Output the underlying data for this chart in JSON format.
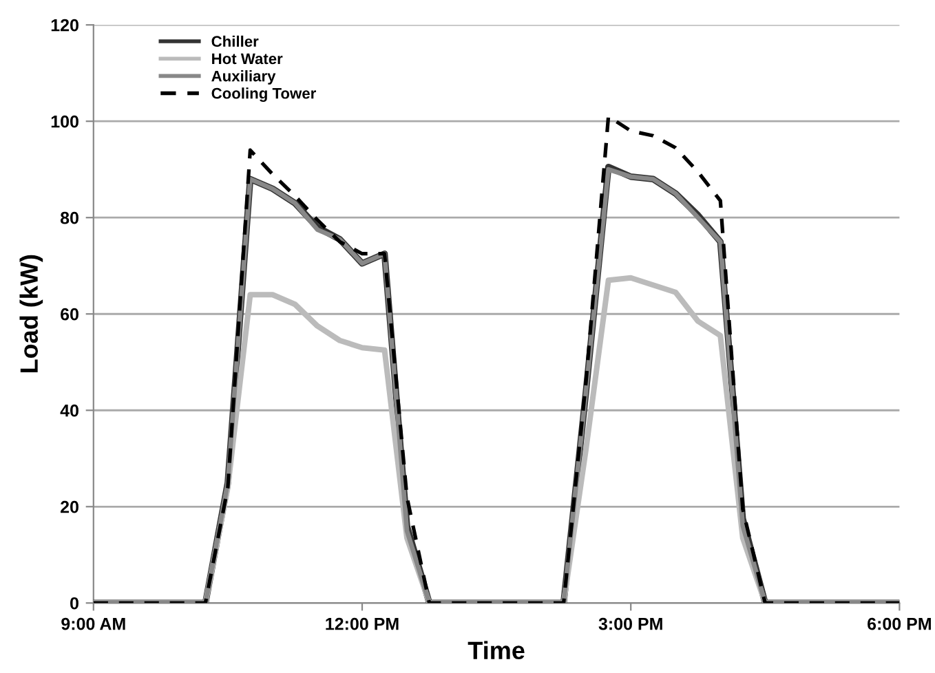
{
  "chart_data": {
    "type": "line",
    "xlabel": "Time",
    "ylabel": "Load (kW)",
    "x": [
      9,
      10.25,
      10.5,
      10.75,
      11.0,
      11.25,
      11.5,
      11.75,
      12.0,
      12.25,
      12.5,
      12.75,
      14.25,
      14.5,
      14.75,
      15.0,
      15.25,
      15.5,
      15.75,
      16.0,
      16.25,
      16.5,
      18
    ],
    "series": [
      {
        "name": "Chiller",
        "color": "#333333",
        "line_style": "solid",
        "values": [
          0,
          0,
          25,
          88,
          86,
          83,
          78,
          75.5,
          70.5,
          72.5,
          16,
          0,
          0,
          44,
          90.5,
          88.5,
          88,
          85,
          80.5,
          75,
          17.5,
          0,
          0
        ]
      },
      {
        "name": "Hot Water",
        "color": "#bbbbbb",
        "line_style": "solid",
        "values": [
          0,
          0,
          24,
          64,
          64,
          62,
          57.5,
          54.5,
          53,
          52.5,
          13.5,
          0,
          0,
          32,
          67,
          67.5,
          66,
          64.5,
          58.5,
          55.5,
          13.5,
          0,
          0
        ]
      },
      {
        "name": "Auxiliary",
        "color": "#888888",
        "line_style": "solid",
        "values": [
          0,
          0,
          25,
          88,
          86,
          83,
          77.5,
          75.5,
          70.5,
          72.5,
          15,
          0,
          0,
          44,
          90,
          88.5,
          88,
          85,
          80,
          75,
          16,
          0,
          0
        ]
      },
      {
        "name": "Cooling Tower",
        "color": "#000000",
        "line_style": "dashed",
        "values": [
          0,
          0,
          24,
          94,
          89,
          84.5,
          79.5,
          75,
          72.5,
          72.5,
          22,
          0,
          0,
          46,
          101,
          98,
          97,
          94.5,
          89.5,
          83.5,
          19.5,
          0,
          0
        ]
      }
    ],
    "xlim": [
      9,
      18
    ],
    "xticks": [
      {
        "value": 9,
        "label": "9:00 AM"
      },
      {
        "value": 12,
        "label": "12:00 PM"
      },
      {
        "value": 15,
        "label": "3:00 PM"
      },
      {
        "value": 18,
        "label": "6:00 PM"
      }
    ],
    "ylim": [
      0,
      120
    ],
    "yticks": [
      0,
      20,
      40,
      60,
      80,
      100,
      120
    ],
    "grid": "y",
    "legend": "top left"
  }
}
